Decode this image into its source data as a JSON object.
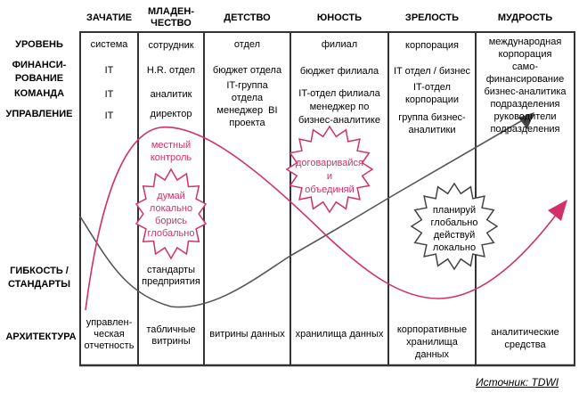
{
  "stages": [
    "ЗАЧАТИЕ",
    "МЛАДЕН-\nЧЕСТВО",
    "ДЕТСТВО",
    "ЮНОСТЬ",
    "ЗРЕЛОСТЬ",
    "МУДРОСТЬ"
  ],
  "rows": {
    "level": "УРОВЕНЬ",
    "funding": "ФИНАНСИ-\nРОВАНИЕ",
    "team": "КОМАНДА",
    "management": "УПРАВЛЕНИЕ",
    "flex": "ГИБКОСТЬ /\nСТАНДАРТЫ",
    "arch": "АРХИТЕКТУРА"
  },
  "cells": {
    "c1": {
      "level": "система",
      "funding": "IT",
      "team": "IT",
      "management": "IT",
      "arch": "управлен-\nческая\nотчетность"
    },
    "c2": {
      "level": "сотрудник",
      "funding": "H.R. отдел",
      "team": "аналитик",
      "management": "директор",
      "flex": "стандарты\nпредприятия",
      "arch": "табличные\nвитрины"
    },
    "c3": {
      "level": "отдел",
      "funding": "бюджет отдела",
      "team": "IT-группа\nотдела\nменеджер  BI\nпроекта",
      "arch": "витрины данных"
    },
    "c4": {
      "level": "филиал",
      "funding": "бюджет филиала",
      "team": "IT-отдел филиала\nменеджер по\nбизнес-аналитике",
      "arch": "хранилища данных"
    },
    "c5": {
      "level": "корпорация",
      "funding": "IT отдел / бизнес",
      "team": "IT-отдел\nкорпорации",
      "management": "группа бизнес-\nаналитики",
      "arch": "корпоративные\nхранилища\nданных"
    },
    "c6": {
      "level": "международная\nкорпорация\nсамо-\nфинансирование\nбизнес-аналитика\nподразделения\nруководители\nподразделения",
      "arch": "аналитические\nсредства"
    }
  },
  "annotations": {
    "local_control": "местный\nконтроль",
    "think_local": "думай\nлокально\nборись\nглобально",
    "negotiate": "договаривайся\nи\nобъединяй",
    "plan_global": "планируй\nглобально\nдействуй\nлокально"
  },
  "source": "Источник: TDWI",
  "colors": {
    "pink": "#d2306a",
    "gray": "#555555"
  }
}
